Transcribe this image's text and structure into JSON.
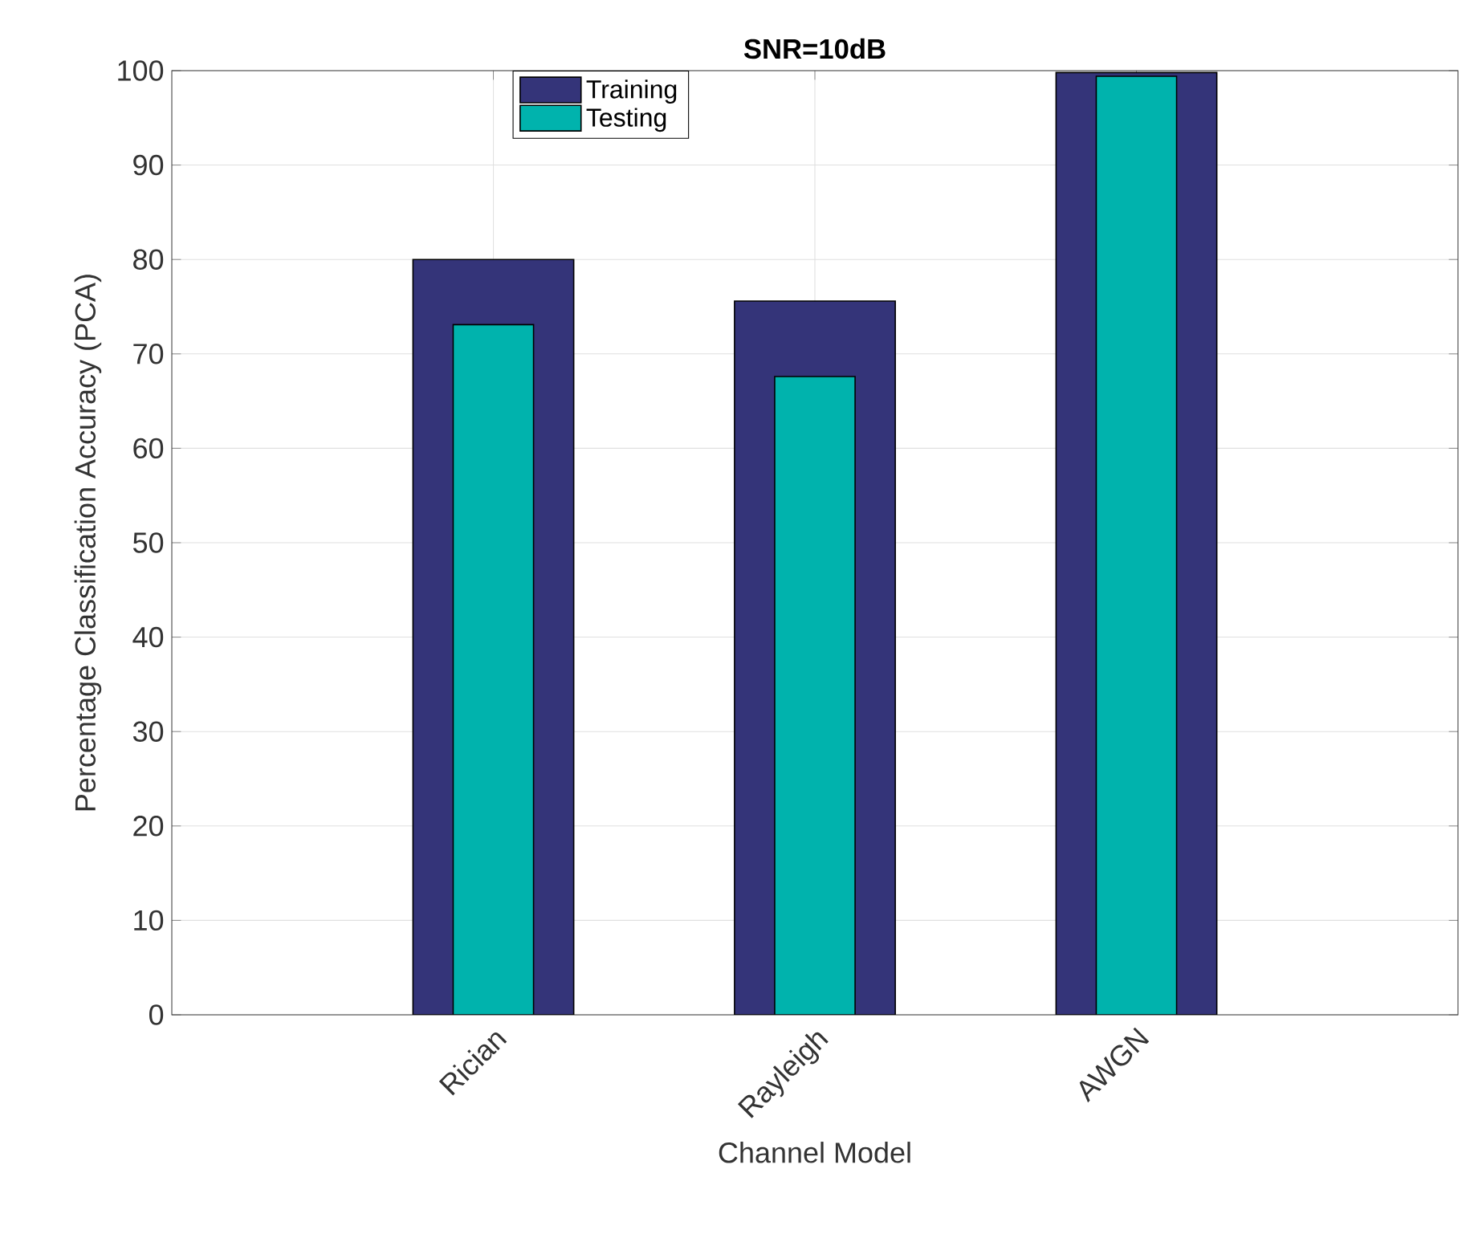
{
  "chart_data": {
    "type": "bar",
    "title": "SNR=10dB",
    "xlabel": "Channel Model",
    "ylabel": "Percentage Classification Accuracy (PCA)",
    "categories": [
      "Rician",
      "Rayleigh",
      "AWGN"
    ],
    "series": [
      {
        "name": "Training",
        "color": "#343479",
        "values": [
          80,
          75.6,
          99.8
        ]
      },
      {
        "name": "Testing",
        "color": "#00b3ad",
        "values": [
          73.1,
          67.6,
          99.4
        ]
      }
    ],
    "ylim": [
      0,
      100
    ],
    "yticks": [
      0,
      10,
      20,
      30,
      40,
      50,
      60,
      70,
      80,
      90,
      100
    ],
    "grid": true,
    "legend": "top"
  }
}
